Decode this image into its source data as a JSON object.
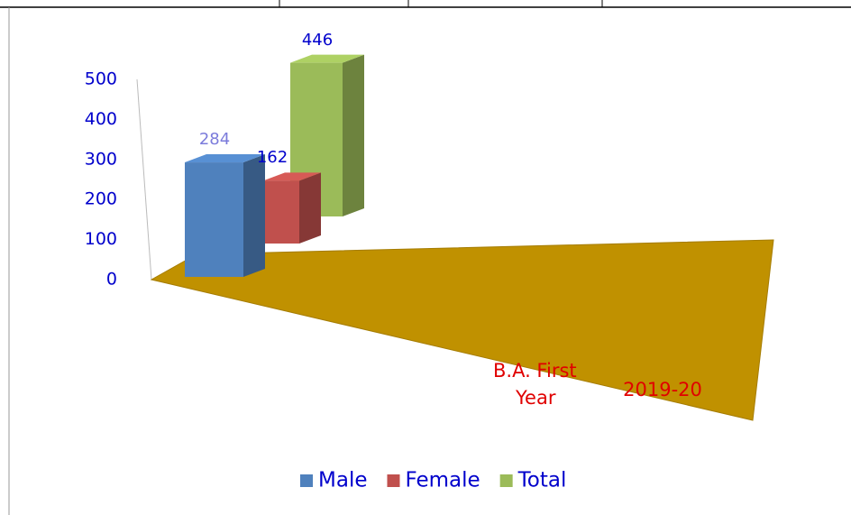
{
  "chart_data": {
    "type": "bar3d",
    "categories": [
      "B.A. First Year"
    ],
    "series_axis_label": "2019-20",
    "series": [
      {
        "name": "Male",
        "color": "#4f81bd",
        "values": [
          284
        ],
        "label_color": "#7b7bdb"
      },
      {
        "name": "Female",
        "color": "#c0504d",
        "values": [
          162
        ],
        "label_color": "#0000cc"
      },
      {
        "name": "Total",
        "color": "#9bbb59",
        "values": [
          446
        ],
        "label_color": "#0000cc"
      }
    ],
    "floor_color": "#c09100",
    "ylim": [
      0,
      500
    ],
    "yticks": [
      0,
      100,
      200,
      300,
      400,
      500
    ],
    "legend": "bottom"
  }
}
